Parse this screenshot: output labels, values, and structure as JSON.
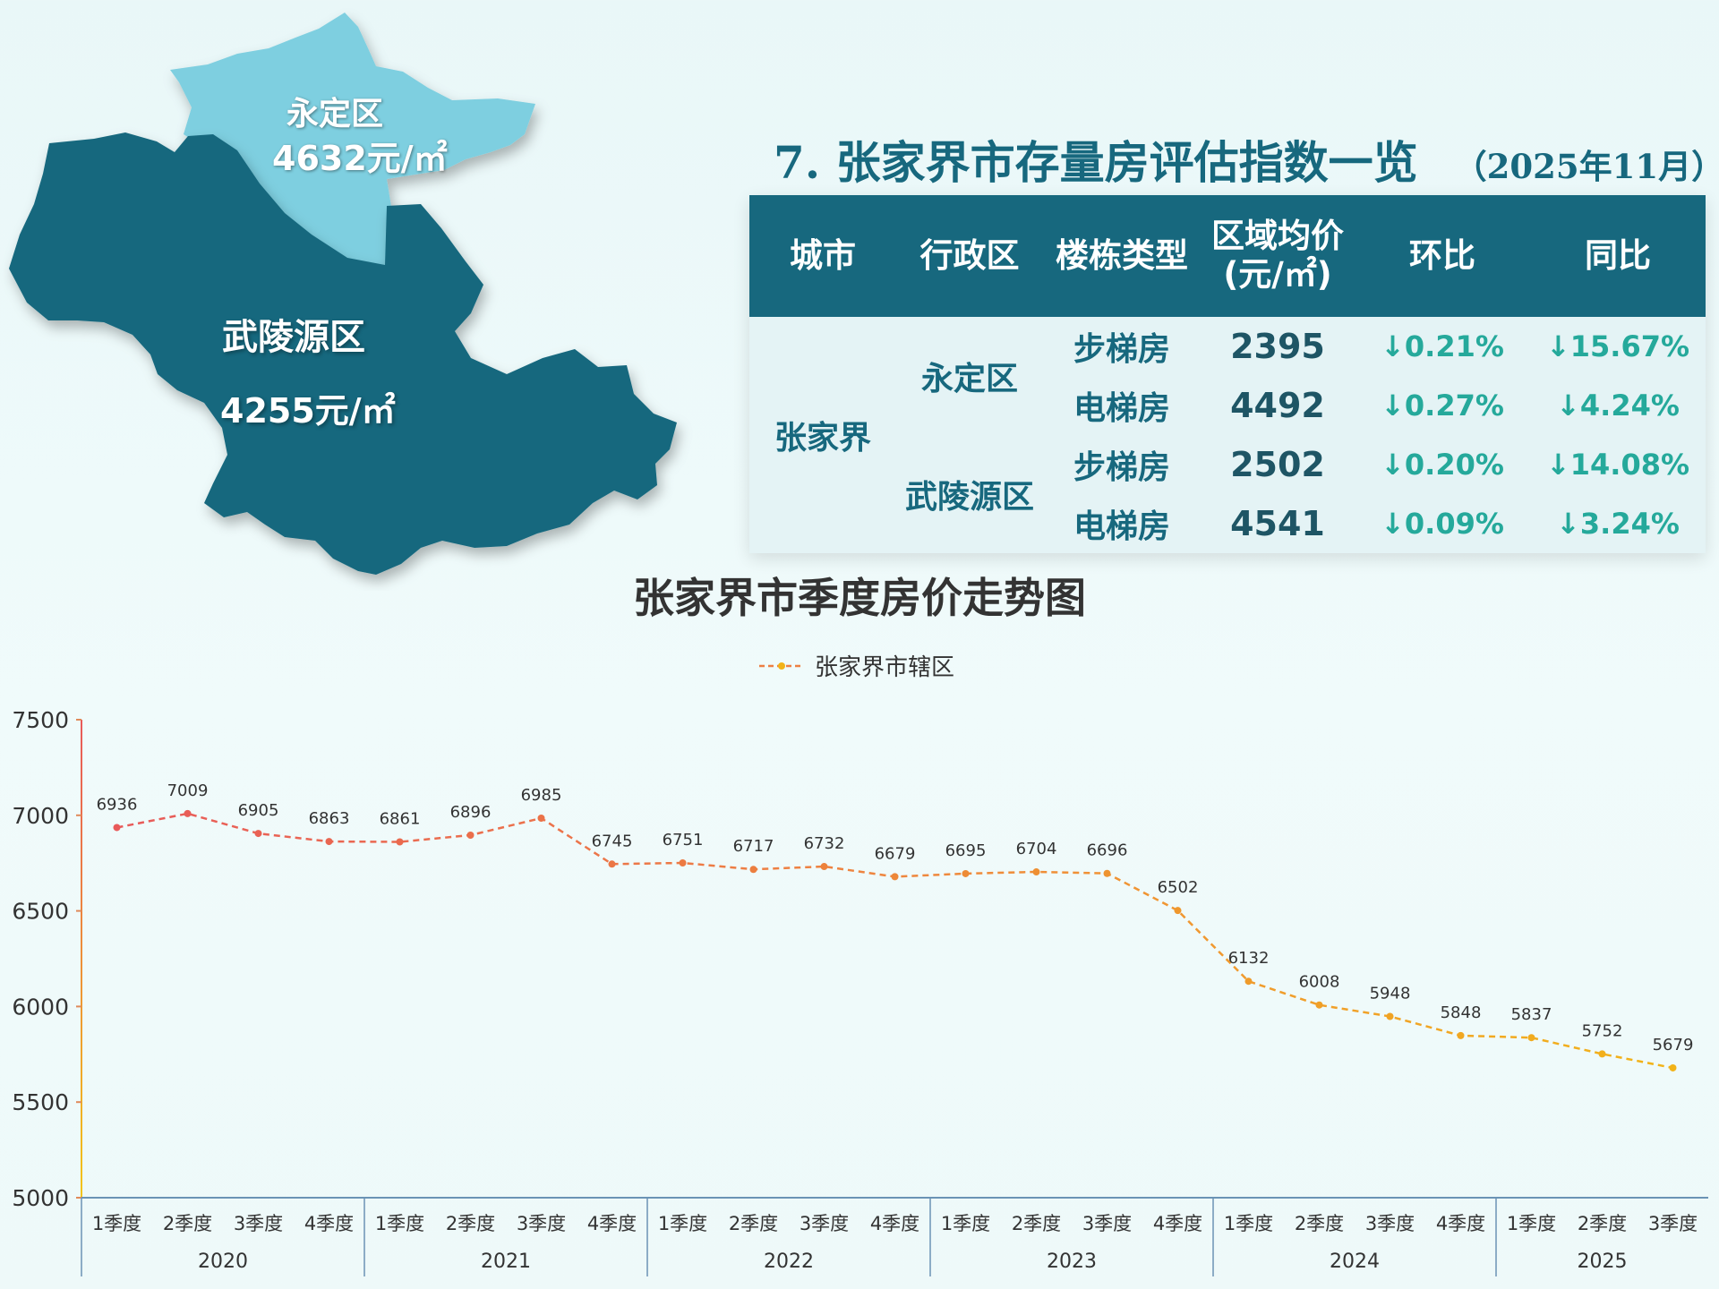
{
  "map": {
    "yongding": {
      "name": "永定区",
      "price": "4632元/㎡"
    },
    "wulingyuan": {
      "name": "武陵源区",
      "price": "4255元/㎡"
    }
  },
  "table": {
    "title": "7. 张家界市存量房评估指数一览",
    "date": "（2025年11月）",
    "headers": [
      "城市",
      "行政区",
      "楼栋类型",
      "区域均价",
      "(元/㎡)",
      "环比",
      "同比"
    ],
    "city": "张家界",
    "rows": [
      {
        "district": "永定区",
        "type": "步梯房",
        "price": "2395",
        "mom": "↓0.21%",
        "yoy": "↓15.67%"
      },
      {
        "type": "电梯房",
        "price": "4492",
        "mom": "↓0.27%",
        "yoy": "↓4.24%"
      },
      {
        "district": "武陵源区",
        "type": "步梯房",
        "price": "2502",
        "mom": "↓0.20%",
        "yoy": "↓14.08%"
      },
      {
        "type": "电梯房",
        "price": "4541",
        "mom": "↓0.09%",
        "yoy": "↓3.24%"
      }
    ]
  },
  "chart_data": {
    "type": "line",
    "title": "张家界市季度房价走势图",
    "legend": "top-center",
    "series": [
      {
        "name": "张家界市辖区",
        "values": [
          6936,
          7009,
          6905,
          6863,
          6861,
          6896,
          6985,
          6745,
          6751,
          6717,
          6732,
          6679,
          6695,
          6704,
          6696,
          6502,
          6132,
          6008,
          5948,
          5848,
          5837,
          5752,
          5679
        ]
      }
    ],
    "categories": [
      "1季度",
      "2季度",
      "3季度",
      "4季度",
      "1季度",
      "2季度",
      "3季度",
      "4季度",
      "1季度",
      "2季度",
      "3季度",
      "4季度",
      "1季度",
      "2季度",
      "3季度",
      "4季度",
      "1季度",
      "2季度",
      "3季度",
      "4季度",
      "1季度",
      "2季度",
      "3季度"
    ],
    "years": [
      "2020",
      "2021",
      "2022",
      "2023",
      "2024",
      "2025"
    ],
    "yticks": [
      5000,
      5500,
      6000,
      6500,
      7000,
      7500
    ],
    "ylim": [
      5000,
      7500
    ],
    "grid": false,
    "colors": {
      "line_start": "#e85a5a",
      "line_end": "#f2b318",
      "axis": "#6b93b5"
    }
  }
}
